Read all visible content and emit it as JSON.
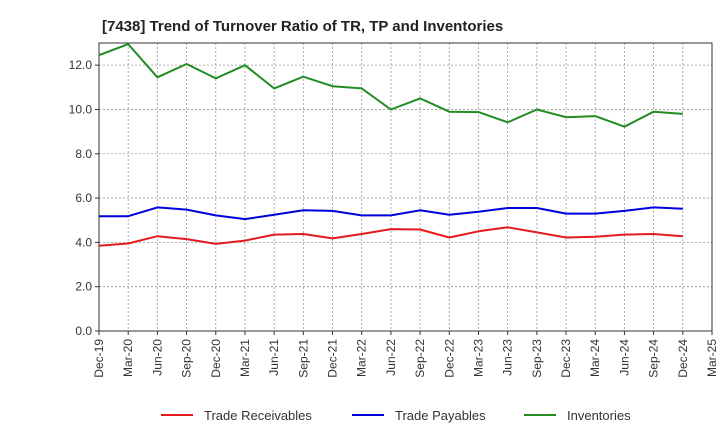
{
  "chart_data": {
    "type": "line",
    "title": "[7438]  Trend of Turnover Ratio of TR, TP and Inventories",
    "xlabel": "",
    "ylabel": "",
    "ylim": [
      0,
      13.0
    ],
    "yticks": [
      "0.0",
      "2.0",
      "4.0",
      "6.0",
      "8.0",
      "10.0",
      "12.0"
    ],
    "ytick_values": [
      0,
      2,
      4,
      6,
      8,
      10,
      12
    ],
    "x": [
      "Dec-19",
      "Mar-20",
      "Jun-20",
      "Sep-20",
      "Dec-20",
      "Mar-21",
      "Jun-21",
      "Sep-21",
      "Dec-21",
      "Mar-22",
      "Jun-22",
      "Sep-22",
      "Dec-22",
      "Mar-23",
      "Jun-23",
      "Sep-23",
      "Dec-23",
      "Mar-24",
      "Jun-24",
      "Sep-24",
      "Dec-24",
      "Mar-25"
    ],
    "grid": true,
    "legend_position": "bottom",
    "series": [
      {
        "name": "Trade Receivables",
        "color": "#e41a1c",
        "values": [
          3.85,
          3.95,
          4.28,
          4.15,
          3.93,
          4.08,
          4.35,
          4.38,
          4.18,
          4.38,
          4.6,
          4.58,
          4.22,
          4.5,
          4.68,
          4.45,
          4.22,
          4.25,
          4.35,
          4.38,
          4.28,
          null
        ]
      },
      {
        "name": "Trade Payables",
        "color": "#0000dd",
        "values": [
          5.18,
          5.18,
          5.58,
          5.48,
          5.22,
          5.05,
          5.25,
          5.45,
          5.42,
          5.22,
          5.22,
          5.45,
          5.25,
          5.38,
          5.55,
          5.55,
          5.3,
          5.3,
          5.42,
          5.58,
          5.52,
          null
        ]
      },
      {
        "name": "Inventories",
        "color": "#228b22",
        "values": [
          12.45,
          12.95,
          11.45,
          12.05,
          11.4,
          12.0,
          10.95,
          11.48,
          11.05,
          10.95,
          10.0,
          10.5,
          9.9,
          9.88,
          9.42,
          10.0,
          9.65,
          9.7,
          9.22,
          9.9,
          9.8,
          null
        ]
      }
    ]
  }
}
